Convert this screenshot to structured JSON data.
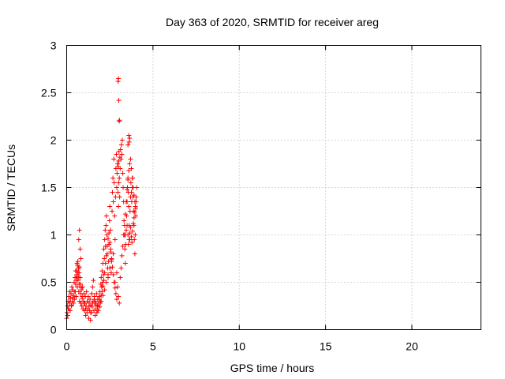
{
  "chart_data": {
    "type": "scatter",
    "title": "Day 363 of 2020, SRMTID for receiver areg",
    "xlabel": "GPS time / hours",
    "ylabel": "SRMTID / TECUs",
    "xlim": [
      0,
      24
    ],
    "ylim": [
      0,
      3
    ],
    "xticks": [
      0,
      5,
      10,
      15,
      20
    ],
    "xtick_labels": [
      "0",
      "5",
      "10",
      "15",
      "20"
    ],
    "yticks": [
      0,
      0.5,
      1,
      1.5,
      2,
      2.5,
      3
    ],
    "ytick_labels": [
      "0",
      "0.5",
      "1",
      "1.5",
      "2",
      "2.5",
      "3"
    ],
    "grid": true,
    "marker": "+",
    "series": [
      {
        "name": "SRMTID",
        "color": "#ff0000",
        "x": [
          0.0,
          0.02,
          0.04,
          0.06,
          0.08,
          0.1,
          0.12,
          0.15,
          0.18,
          0.2,
          0.22,
          0.25,
          0.28,
          0.3,
          0.33,
          0.35,
          0.38,
          0.4,
          0.43,
          0.45,
          0.48,
          0.5,
          0.52,
          0.55,
          0.58,
          0.6,
          0.62,
          0.65,
          0.68,
          0.7,
          0.72,
          0.75,
          0.78,
          0.8,
          0.82,
          0.85,
          0.88,
          0.9,
          0.92,
          0.95,
          0.98,
          1.0,
          1.03,
          1.05,
          1.08,
          1.1,
          1.13,
          1.15,
          1.18,
          1.2,
          1.23,
          1.25,
          1.28,
          1.3,
          1.33,
          1.35,
          1.38,
          1.4,
          1.43,
          1.45,
          1.48,
          1.5,
          1.53,
          1.55,
          1.58,
          1.6,
          1.63,
          1.65,
          1.68,
          1.7,
          1.73,
          1.75,
          1.78,
          1.8,
          1.83,
          1.85,
          1.88,
          1.9,
          1.93,
          1.95,
          1.98,
          2.0,
          2.03,
          2.05,
          2.08,
          2.1,
          2.13,
          2.15,
          2.18,
          2.2,
          2.23,
          2.25,
          2.28,
          2.3,
          2.33,
          2.35,
          2.38,
          2.4,
          2.43,
          2.45,
          2.48,
          2.5,
          2.53,
          2.55,
          2.58,
          2.6,
          2.63,
          2.65,
          2.68,
          2.7,
          2.73,
          2.75,
          2.78,
          2.8,
          2.83,
          2.85,
          2.88,
          2.9,
          2.92,
          2.95,
          2.97,
          3.0,
          3.02,
          3.05,
          3.07,
          3.1,
          3.12,
          3.15,
          3.17,
          3.2,
          3.22,
          3.25,
          3.27,
          3.3,
          3.32,
          3.35,
          3.37,
          3.4,
          3.42,
          3.45,
          3.47,
          3.5,
          3.52,
          3.55,
          3.57,
          3.6,
          3.62,
          3.65,
          3.67,
          3.7,
          3.72,
          3.75,
          3.77,
          3.8,
          3.82,
          3.85,
          3.87,
          3.9,
          3.92,
          3.95,
          3.97,
          4.0,
          4.02,
          4.05,
          0.05,
          0.12,
          0.2,
          0.28,
          0.36,
          0.44,
          0.52,
          0.6,
          0.66,
          0.7,
          0.74,
          0.78,
          0.82,
          0.9,
          1.0,
          1.1,
          1.2,
          1.3,
          1.4,
          1.5,
          1.6,
          1.7,
          1.8,
          1.9,
          2.0,
          2.1,
          2.2,
          2.3,
          2.4,
          2.5,
          2.6,
          2.7,
          2.8,
          2.9,
          2.95,
          3.0,
          3.05,
          3.1,
          3.15,
          3.2,
          3.25,
          3.3,
          3.35,
          3.4,
          3.45,
          3.5,
          3.55,
          3.6,
          3.65,
          3.7,
          3.75,
          3.8,
          3.85,
          3.9,
          3.95,
          4.0,
          2.98,
          3.0,
          3.02,
          3.04,
          3.06,
          3.08,
          2.99,
          3.01,
          3.03,
          3.55,
          3.6,
          3.62,
          3.65,
          0.62,
          0.65,
          0.68,
          0.7,
          0.72,
          0.75,
          0.58,
          0.55,
          0.8,
          0.85,
          1.9,
          1.95,
          2.0,
          2.05,
          2.1,
          2.15,
          2.2,
          2.25,
          2.3,
          2.35,
          2.4,
          2.45,
          2.5,
          2.55,
          2.6,
          2.65,
          2.7,
          2.75,
          2.8,
          2.85,
          2.9,
          3.4,
          3.45,
          3.5,
          3.55,
          3.58,
          3.62,
          3.66,
          3.7,
          3.75,
          3.78,
          3.82,
          3.86,
          3.9,
          3.94,
          3.98,
          4.02
        ],
        "y": [
          0.12,
          0.18,
          0.25,
          0.15,
          0.3,
          0.22,
          0.35,
          0.28,
          0.4,
          0.2,
          0.33,
          0.38,
          0.25,
          0.45,
          0.3,
          0.42,
          0.36,
          0.28,
          0.5,
          0.32,
          0.55,
          0.4,
          0.62,
          0.35,
          0.58,
          0.7,
          0.45,
          0.52,
          0.66,
          0.4,
          0.48,
          0.3,
          0.55,
          0.38,
          0.28,
          0.42,
          0.25,
          0.33,
          0.45,
          0.22,
          0.3,
          0.38,
          0.2,
          0.28,
          0.35,
          0.15,
          0.25,
          0.4,
          0.18,
          0.3,
          0.22,
          0.35,
          0.12,
          0.28,
          0.2,
          0.32,
          0.1,
          0.26,
          0.18,
          0.38,
          0.24,
          0.45,
          0.3,
          0.52,
          0.2,
          0.35,
          0.28,
          0.15,
          0.3,
          0.22,
          0.38,
          0.18,
          0.25,
          0.32,
          0.2,
          0.28,
          0.35,
          0.24,
          0.4,
          0.3,
          0.48,
          0.55,
          0.45,
          0.62,
          0.5,
          0.7,
          0.58,
          0.85,
          0.75,
          0.95,
          1.05,
          0.88,
          1.1,
          1.2,
          1.0,
          0.8,
          0.65,
          0.55,
          0.72,
          0.9,
          1.15,
          1.3,
          1.05,
          0.85,
          0.6,
          0.75,
          1.25,
          1.45,
          1.6,
          1.35,
          1.8,
          1.55,
          1.2,
          0.95,
          1.4,
          1.7,
          1.85,
          1.5,
          1.65,
          1.75,
          1.45,
          1.3,
          1.55,
          1.6,
          1.4,
          1.7,
          1.9,
          1.8,
          1.95,
          1.85,
          2.0,
          1.65,
          1.5,
          1.35,
          1.15,
          1.0,
          0.85,
          0.7,
          0.9,
          1.05,
          1.2,
          1.35,
          1.5,
          1.6,
          1.45,
          1.3,
          1.1,
          0.95,
          1.25,
          1.4,
          1.55,
          1.45,
          1.35,
          1.5,
          1.6,
          1.4,
          1.25,
          1.1,
          0.95,
          0.8,
          1.0,
          1.2,
          1.35,
          1.5,
          0.15,
          0.22,
          0.3,
          0.26,
          0.34,
          0.4,
          0.48,
          0.56,
          0.6,
          0.95,
          1.05,
          0.85,
          0.75,
          0.35,
          0.28,
          0.22,
          0.3,
          0.25,
          0.18,
          0.28,
          0.32,
          0.26,
          0.2,
          0.24,
          0.3,
          0.36,
          0.42,
          0.5,
          0.58,
          0.65,
          0.72,
          0.8,
          0.5,
          0.6,
          0.45,
          0.35,
          0.28,
          0.55,
          0.65,
          0.78,
          0.88,
          1.0,
          1.1,
          1.22,
          1.35,
          1.48,
          1.58,
          1.68,
          1.75,
          1.8,
          1.7,
          1.6,
          1.5,
          1.42,
          1.35,
          1.28,
          2.62,
          2.65,
          2.42,
          2.2,
          2.21,
          1.82,
          1.72,
          1.78,
          1.88,
          1.95,
          2.05,
          1.98,
          2.02,
          0.68,
          0.72,
          0.64,
          0.55,
          0.6,
          0.66,
          0.62,
          0.52,
          0.48,
          0.44,
          0.32,
          0.28,
          0.36,
          0.4,
          0.46,
          0.52,
          0.6,
          0.7,
          0.78,
          0.88,
          0.96,
          1.02,
          0.92,
          0.82,
          0.74,
          0.66,
          0.58,
          0.5,
          0.44,
          0.38,
          0.32,
          1.0,
          1.05,
          1.1,
          1.0,
          0.9,
          0.95,
          1.02,
          1.08,
          0.98,
          0.92,
          1.04,
          1.12,
          1.18,
          1.24,
          1.3,
          1.4
        ]
      }
    ]
  }
}
